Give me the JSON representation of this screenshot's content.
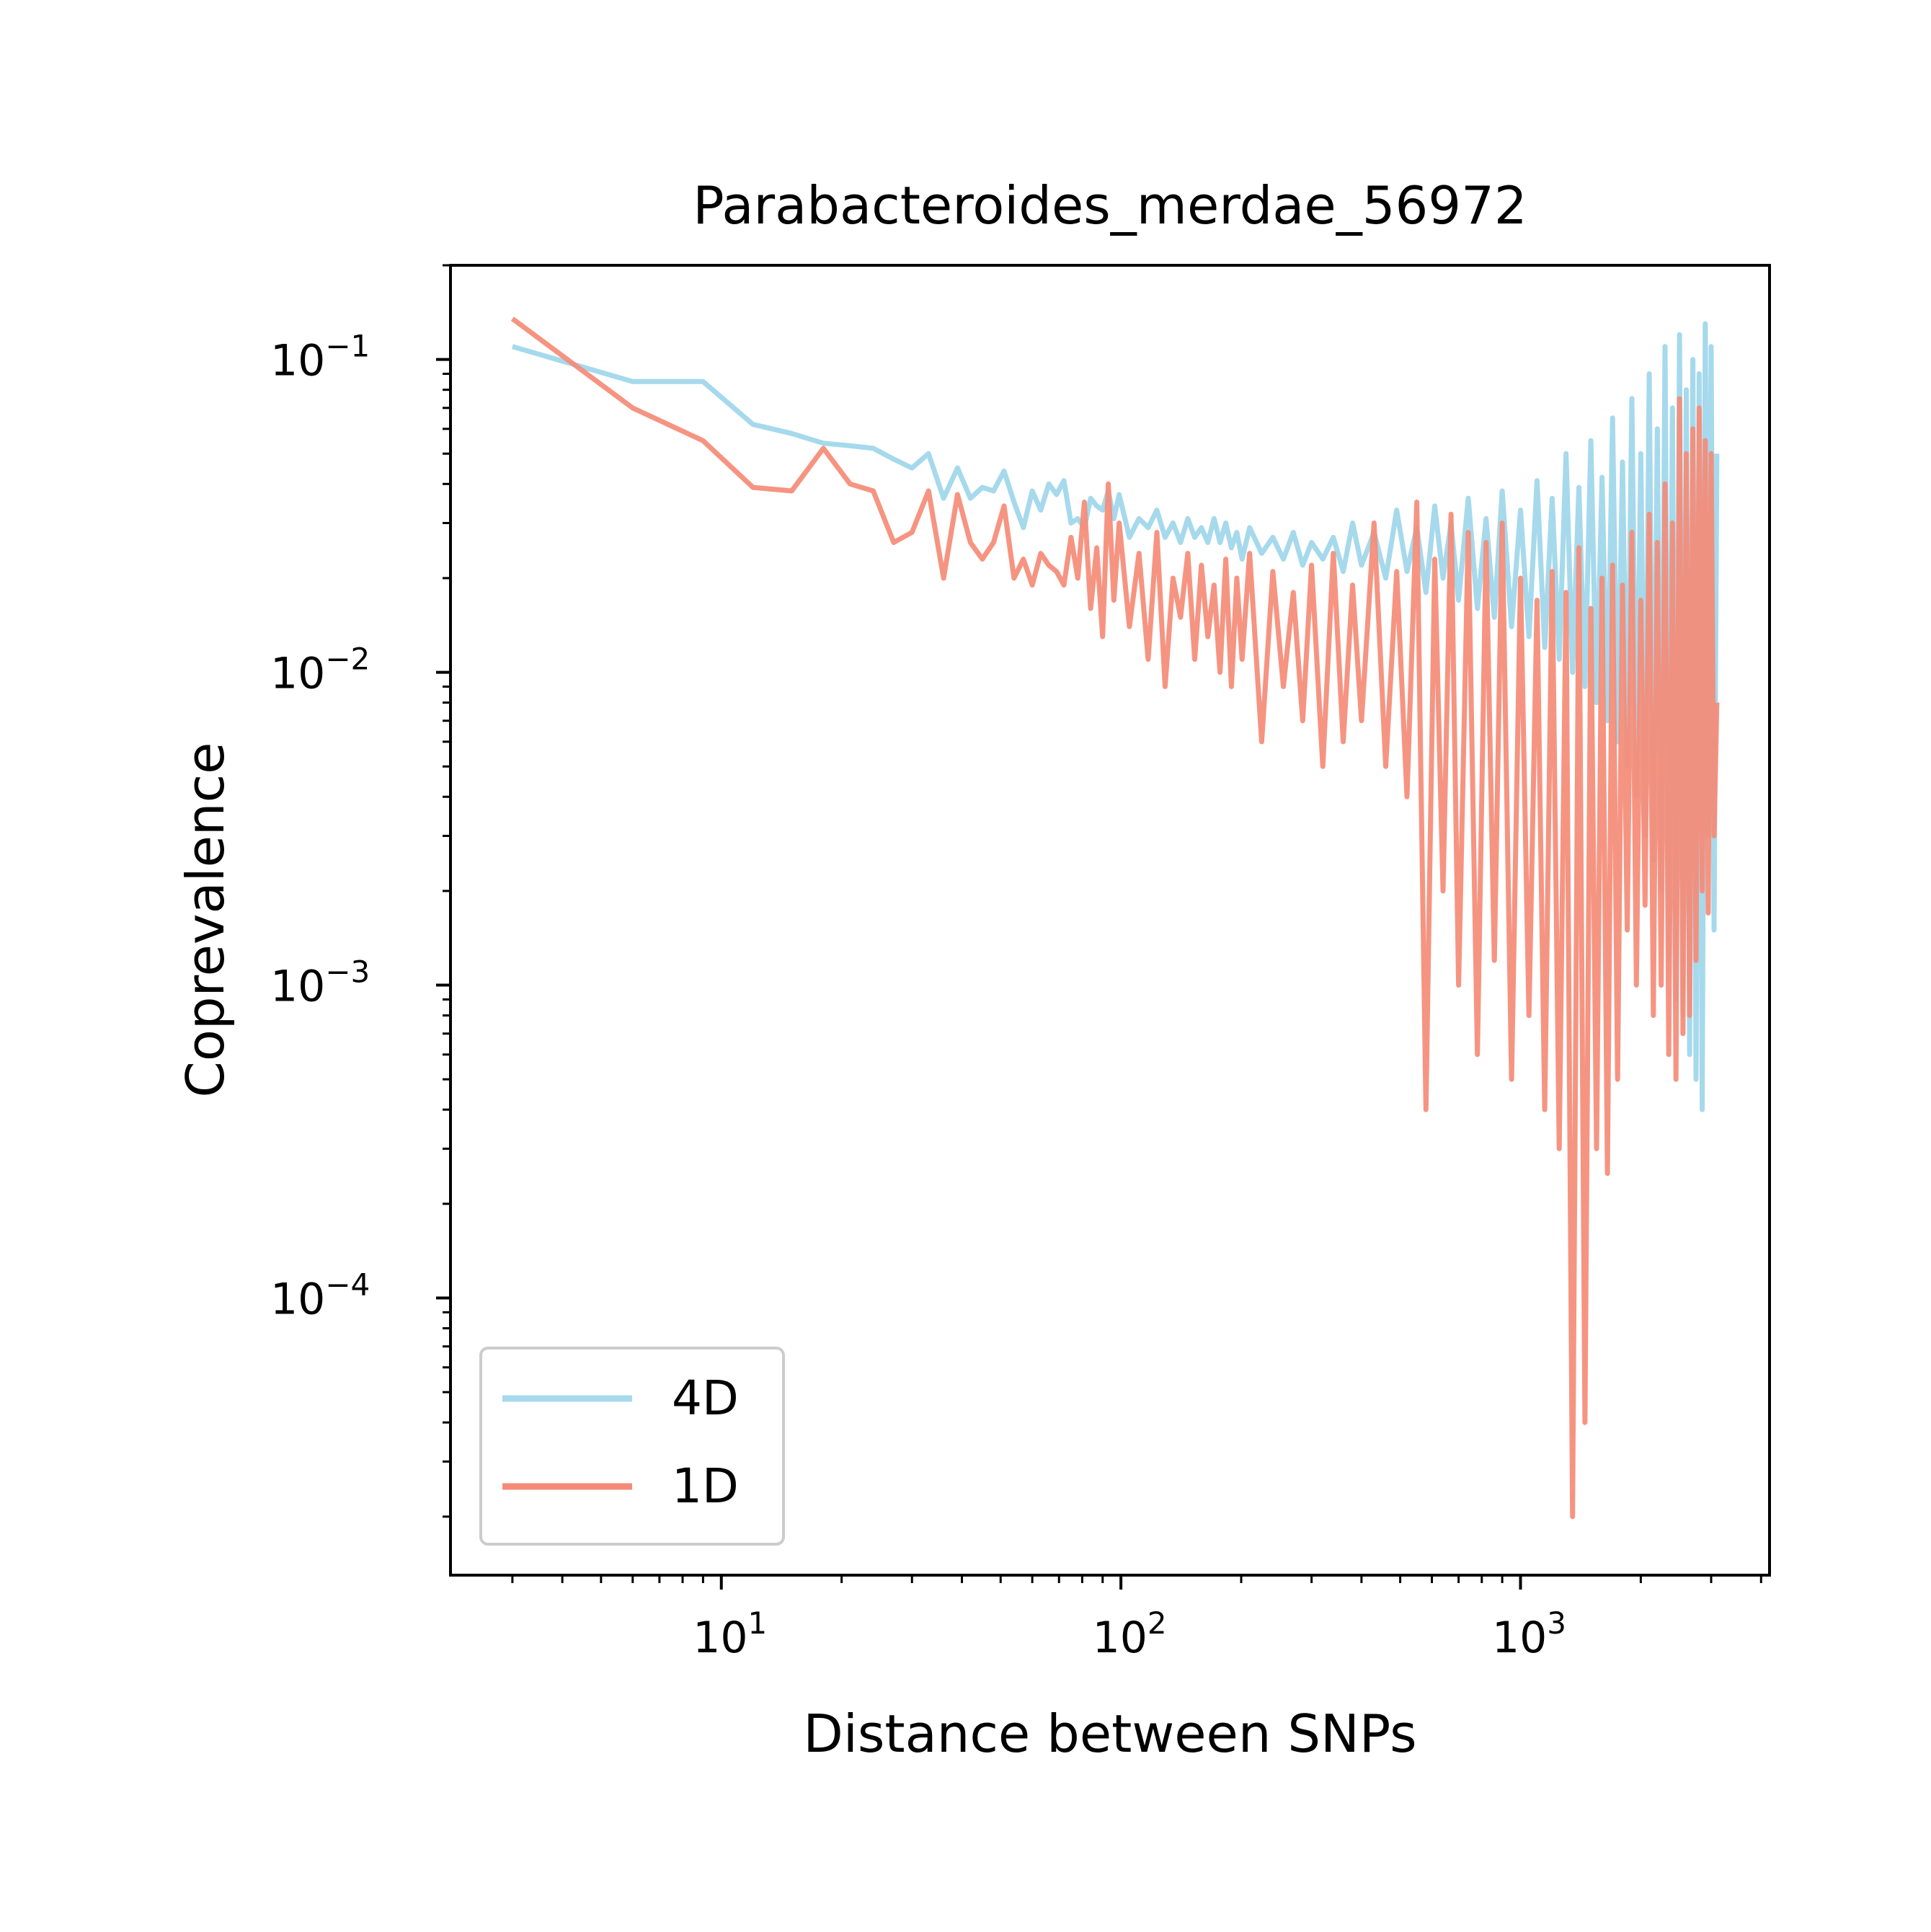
{
  "chart_data": {
    "type": "line",
    "title": "Parabacteroides_merdae_56972",
    "xlabel": "Distance between SNPs",
    "ylabel": "Coprevalence",
    "xscale": "log",
    "yscale": "log",
    "xlim": [
      2.1,
      4200
    ],
    "ylim": [
      1.3e-05,
      0.2
    ],
    "x_ticks": [
      {
        "value": 10,
        "base": "10",
        "exp": "1"
      },
      {
        "value": 100,
        "base": "10",
        "exp": "2"
      },
      {
        "value": 1000,
        "base": "10",
        "exp": "3"
      }
    ],
    "y_ticks": [
      {
        "value": 0.1,
        "base": "10",
        "exp": "−1"
      },
      {
        "value": 0.01,
        "base": "10",
        "exp": "−2"
      },
      {
        "value": 0.001,
        "base": "10",
        "exp": "−3"
      },
      {
        "value": 0.0001,
        "base": "10",
        "exp": "−4"
      }
    ],
    "grid": false,
    "legend_position": "lower-left",
    "series": [
      {
        "name": "4D",
        "color": "#a6d9ec",
        "x": [
          3,
          6,
          9,
          12,
          15,
          18,
          21,
          24,
          27,
          30,
          33,
          36,
          39,
          42,
          45,
          48,
          51,
          54,
          57,
          60,
          63,
          66,
          69,
          72,
          75,
          78,
          81,
          84,
          87,
          90,
          93,
          96,
          99,
          105,
          111,
          117,
          123,
          129,
          135,
          141,
          147,
          153,
          159,
          165,
          171,
          177,
          183,
          189,
          195,
          201,
          210,
          225,
          240,
          255,
          270,
          285,
          300,
          320,
          340,
          360,
          380,
          400,
          430,
          460,
          490,
          520,
          550,
          580,
          610,
          640,
          670,
          700,
          740,
          780,
          820,
          860,
          900,
          950,
          1000,
          1050,
          1100,
          1150,
          1200,
          1250,
          1300,
          1350,
          1400,
          1450,
          1500,
          1550,
          1600,
          1650,
          1700,
          1750,
          1800,
          1850,
          1900,
          1950,
          2000,
          2050,
          2100,
          2150,
          2200,
          2250,
          2300,
          2350,
          2400,
          2450,
          2500,
          2550,
          2600,
          2650,
          2700,
          2750,
          2800,
          2850,
          2900,
          2950,
          3000,
          3050,
          3100
        ],
        "y": [
          0.11,
          0.085,
          0.085,
          0.062,
          0.058,
          0.054,
          0.053,
          0.052,
          0.048,
          0.045,
          0.05,
          0.036,
          0.045,
          0.036,
          0.039,
          0.038,
          0.044,
          0.035,
          0.029,
          0.038,
          0.033,
          0.04,
          0.037,
          0.041,
          0.03,
          0.031,
          0.029,
          0.036,
          0.034,
          0.033,
          0.038,
          0.031,
          0.037,
          0.027,
          0.031,
          0.029,
          0.033,
          0.027,
          0.03,
          0.026,
          0.031,
          0.027,
          0.029,
          0.026,
          0.031,
          0.026,
          0.03,
          0.025,
          0.028,
          0.023,
          0.029,
          0.024,
          0.027,
          0.023,
          0.028,
          0.022,
          0.026,
          0.023,
          0.027,
          0.021,
          0.03,
          0.022,
          0.028,
          0.02,
          0.033,
          0.021,
          0.029,
          0.018,
          0.034,
          0.02,
          0.03,
          0.017,
          0.036,
          0.016,
          0.031,
          0.015,
          0.038,
          0.014,
          0.033,
          0.013,
          0.041,
          0.012,
          0.036,
          0.011,
          0.05,
          0.01,
          0.039,
          0.009,
          0.055,
          0.008,
          0.042,
          0.007,
          0.065,
          0.006,
          0.047,
          0.005,
          0.075,
          0.004,
          0.05,
          0.003,
          0.09,
          0.0025,
          0.06,
          0.002,
          0.11,
          0.0012,
          0.07,
          0.0009,
          0.12,
          0.0008,
          0.08,
          0.0006,
          0.1,
          0.0005,
          0.09,
          0.0004,
          0.13,
          0.003,
          0.11,
          0.0015,
          0.05
        ]
      },
      {
        "name": "1D",
        "color": "#f58b77",
        "x": [
          3,
          6,
          9,
          12,
          15,
          18,
          21,
          24,
          27,
          30,
          33,
          36,
          39,
          42,
          45,
          48,
          51,
          54,
          57,
          60,
          63,
          66,
          69,
          72,
          75,
          78,
          81,
          84,
          87,
          90,
          93,
          96,
          99,
          105,
          111,
          117,
          123,
          129,
          135,
          141,
          147,
          153,
          159,
          165,
          171,
          177,
          183,
          189,
          195,
          201,
          210,
          225,
          240,
          255,
          270,
          285,
          300,
          320,
          340,
          360,
          380,
          400,
          430,
          460,
          490,
          520,
          550,
          580,
          610,
          640,
          670,
          700,
          740,
          780,
          820,
          860,
          900,
          950,
          1000,
          1050,
          1100,
          1150,
          1200,
          1250,
          1300,
          1350,
          1400,
          1450,
          1500,
          1550,
          1600,
          1650,
          1700,
          1750,
          1800,
          1850,
          1900,
          1950,
          2000,
          2050,
          2100,
          2150,
          2200,
          2250,
          2300,
          2350,
          2400,
          2450,
          2500,
          2550,
          2600,
          2650,
          2700,
          2750,
          2800,
          2850,
          2900,
          2950,
          3000,
          3050,
          3100
        ],
        "y": [
          0.135,
          0.07,
          0.055,
          0.039,
          0.038,
          0.052,
          0.04,
          0.038,
          0.026,
          0.028,
          0.038,
          0.02,
          0.037,
          0.026,
          0.023,
          0.026,
          0.034,
          0.02,
          0.023,
          0.019,
          0.024,
          0.022,
          0.021,
          0.019,
          0.027,
          0.02,
          0.035,
          0.016,
          0.025,
          0.013,
          0.04,
          0.017,
          0.03,
          0.014,
          0.024,
          0.011,
          0.028,
          0.009,
          0.02,
          0.015,
          0.024,
          0.011,
          0.022,
          0.013,
          0.019,
          0.01,
          0.023,
          0.009,
          0.02,
          0.011,
          0.024,
          0.006,
          0.021,
          0.009,
          0.018,
          0.007,
          0.022,
          0.005,
          0.024,
          0.006,
          0.019,
          0.007,
          0.03,
          0.005,
          0.021,
          0.004,
          0.035,
          0.0004,
          0.023,
          0.002,
          0.032,
          0.001,
          0.028,
          0.0006,
          0.026,
          0.0012,
          0.03,
          0.0005,
          0.02,
          0.0008,
          0.017,
          0.0004,
          0.021,
          0.0003,
          0.018,
          2e-05,
          0.025,
          4e-05,
          0.016,
          0.0003,
          0.02,
          0.00025,
          0.022,
          0.0005,
          0.019,
          0.0015,
          0.028,
          0.001,
          0.017,
          0.0018,
          0.032,
          0.0008,
          0.026,
          0.001,
          0.04,
          0.0006,
          0.03,
          0.0005,
          0.075,
          0.0007,
          0.05,
          0.0008,
          0.06,
          0.0012,
          0.07,
          0.002,
          0.055,
          0.0017,
          0.05,
          0.003,
          0.008
        ]
      }
    ]
  }
}
